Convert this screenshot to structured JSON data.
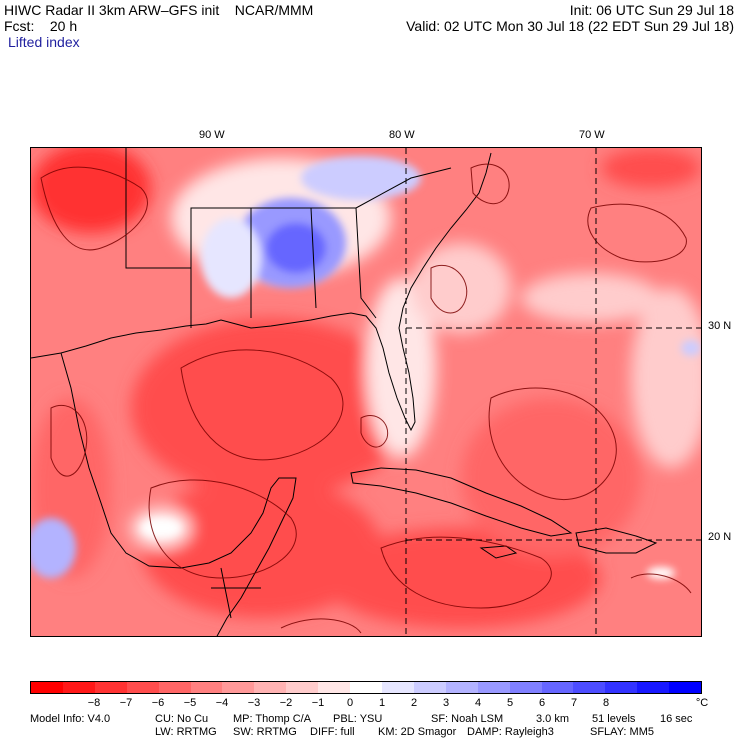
{
  "header": {
    "line1_left": "HIWC Radar II 3km ARW–GFS init    NCAR/MMM",
    "line1_right": "Init: 06 UTC Sun 29 Jul 18",
    "line2_left": "Fcst:    20 h",
    "line2_right": "Valid: 02 UTC Mon 30 Jul 18 (22 EDT Sun 29 Jul 18)",
    "field_name": "Lifted index"
  },
  "map": {
    "lon_labels": [
      "90 W",
      "80 W",
      "70 W"
    ],
    "lat_labels": [
      "30 N",
      "20 N"
    ],
    "colors": {
      "land_border": "#000000",
      "contour": "#7a0000",
      "gridline": "#000000"
    }
  },
  "colorbar": {
    "unit": "°C",
    "labels": [
      "−8",
      "−7",
      "−6",
      "−5",
      "−4",
      "−3",
      "−2",
      "−1",
      "0",
      "1",
      "2",
      "3",
      "4",
      "5",
      "6",
      "7",
      "8"
    ],
    "colors": [
      "#ff0000",
      "#ff1818",
      "#ff3333",
      "#ff4d4d",
      "#ff6666",
      "#ff8080",
      "#ff9999",
      "#ffb3b3",
      "#ffcccc",
      "#ffe6e6",
      "#ffffff",
      "#e6e6ff",
      "#ccccff",
      "#b3b3ff",
      "#9999ff",
      "#8080ff",
      "#6666ff",
      "#4d4dff",
      "#3333ff",
      "#1818ff",
      "#0000ff"
    ]
  },
  "footer": {
    "line1": [
      "Model Info: V4.0",
      "CU: No Cu",
      "MP: Thomp C/A",
      "PBL: YSU",
      "SF: Noah LSM",
      "3.0 km",
      "51 levels",
      "16 sec"
    ],
    "line2": [
      "LW: RRTMG",
      "SW: RRTMG",
      "DIFF: full",
      "KM: 2D Smagor",
      "DAMP: Rayleigh3",
      "SFLAY: MM5"
    ]
  }
}
